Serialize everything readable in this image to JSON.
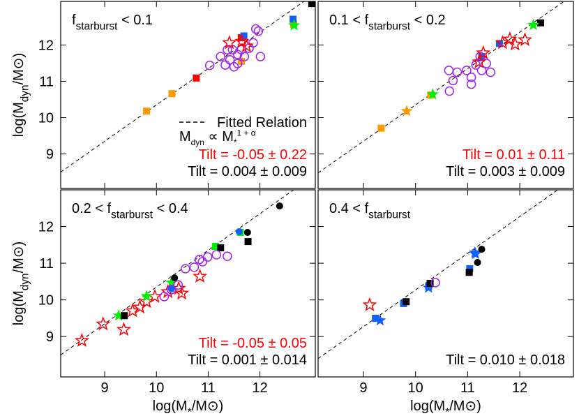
{
  "chart_data": [
    {
      "type": "scatter",
      "title": {
        "prefix": "f",
        "sub": "starburst",
        "suffix": " < 0.1"
      },
      "y_label": {
        "main": "log(M",
        "sub": "dyn",
        "rest": "/M⊙)"
      },
      "xlim": [
        8.15,
        13.07
      ],
      "ylim": [
        8.05,
        13.2
      ],
      "xticks": [
        9,
        10,
        11,
        12
      ],
      "yticks": [
        9,
        10,
        11,
        12
      ],
      "x_tick_labels": false,
      "y_tick_labels": true,
      "fit_line": {
        "x": [
          8.15,
          13.07
        ],
        "y": [
          8.5,
          13.42
        ]
      },
      "fit_label": "Fitted Relation",
      "formula": {
        "main": "M",
        "sub": "dyn",
        "rest": " ∝ M",
        "sub2": "*",
        "sup": "1 + α"
      },
      "annotations": [
        {
          "text": "Tilt = -0.05 ± 0.22",
          "color": "#ff0000"
        },
        {
          "text": "Tilt = 0.004 ± 0.009",
          "color": "#000000"
        }
      ],
      "series": [
        {
          "color": "#ff9900",
          "marker": "square",
          "x": [
            9.81,
            10.3,
            11.64,
            12.65
          ],
          "y": [
            10.18,
            10.66,
            11.55,
            12.57
          ]
        },
        {
          "color": "#ff0000",
          "marker": "square",
          "x": [
            10.77,
            11.64
          ],
          "y": [
            11.09,
            12.2
          ]
        },
        {
          "color": "#1060ff",
          "marker": "square",
          "x": [
            12.64,
            11.69
          ],
          "y": [
            12.71,
            12.25
          ]
        },
        {
          "color": "#00ee00",
          "marker": "star",
          "x": [
            12.66
          ],
          "y": [
            12.54
          ]
        },
        {
          "color": "#000000",
          "marker": "square",
          "x": [
            13.0
          ],
          "y": [
            13.14
          ]
        },
        {
          "color": "#a020f0",
          "marker": "open-circle",
          "x": [
            11.03,
            11.24,
            11.33,
            11.42,
            11.47,
            11.57,
            11.64,
            11.7,
            11.79,
            11.87,
            11.92,
            11.97,
            12.01,
            11.57,
            11.37,
            11.5
          ],
          "y": [
            11.44,
            11.68,
            11.45,
            11.59,
            11.87,
            11.74,
            11.87,
            11.68,
            11.91,
            12.06,
            12.44,
            12.38,
            11.68,
            11.49,
            11.87,
            11.4
          ]
        },
        {
          "color": "#ff0000",
          "marker": "open-star",
          "x": [
            11.41,
            11.65,
            11.74
          ],
          "y": [
            12.06,
            12.1,
            11.97
          ]
        }
      ]
    },
    {
      "type": "scatter",
      "title": {
        "prefix": "0.1 < f",
        "sub": "starburst",
        "suffix": " < 0.2"
      },
      "xlim": [
        8.13,
        13.03
      ],
      "ylim": [
        8.05,
        13.2
      ],
      "xticks": [
        9,
        10,
        11,
        12
      ],
      "yticks": [
        9,
        10,
        11,
        12
      ],
      "x_tick_labels": false,
      "y_tick_labels": false,
      "fit_line": {
        "x": [
          8.13,
          13.03
        ],
        "y": [
          8.48,
          13.38
        ]
      },
      "annotations": [
        {
          "text": "Tilt =  0.01 ± 0.11",
          "color": "#ff0000"
        },
        {
          "text": "Tilt = 0.003 ± 0.009",
          "color": "#000000"
        }
      ],
      "series": [
        {
          "color": "#ff9900",
          "marker": "square",
          "x": [
            9.34,
            10.29
          ],
          "y": [
            9.71,
            10.62
          ]
        },
        {
          "color": "#ff9900",
          "marker": "star",
          "x": [
            9.83
          ],
          "y": [
            10.18
          ]
        },
        {
          "color": "#000000",
          "marker": "square",
          "x": [
            12.4
          ],
          "y": [
            12.61
          ]
        },
        {
          "color": "#00ee00",
          "marker": "star",
          "x": [
            12.26,
            10.33
          ],
          "y": [
            12.55,
            10.64
          ]
        },
        {
          "color": "#1060ff",
          "marker": "square",
          "x": [
            11.61,
            11.27
          ],
          "y": [
            12.04,
            11.68
          ]
        },
        {
          "color": "#a020f0",
          "marker": "open-circle",
          "x": [
            10.64,
            10.8,
            10.98,
            11.07,
            11.16,
            11.27,
            11.36,
            11.44,
            10.72,
            10.65,
            11.24,
            11.07
          ],
          "y": [
            11.3,
            11.25,
            11.3,
            11.11,
            11.45,
            11.3,
            11.49,
            11.25,
            11.02,
            10.73,
            11.68,
            10.92
          ]
        },
        {
          "color": "#ff0000",
          "marker": "open-star",
          "x": [
            11.22,
            11.3,
            11.67,
            11.91,
            12.1,
            11.81
          ],
          "y": [
            11.53,
            11.78,
            12.06,
            12.02,
            12.14,
            12.16
          ]
        }
      ]
    },
    {
      "type": "scatter",
      "title": {
        "prefix": "0.2 < f",
        "sub": "starburst",
        "suffix": " < 0.4"
      },
      "y_label": {
        "main": "log(M",
        "sub": "dyn",
        "rest": "/M⊙)"
      },
      "x_label": {
        "main": "log(M",
        "sub": "*",
        "rest": "/M⊙)"
      },
      "xlim": [
        8.15,
        13.07
      ],
      "ylim": [
        7.9,
        13.0
      ],
      "xticks": [
        9,
        10,
        11,
        12
      ],
      "yticks": [
        9,
        10,
        11,
        12
      ],
      "x_tick_labels": true,
      "y_tick_labels": true,
      "fit_line": {
        "x": [
          8.15,
          13.07
        ],
        "y": [
          8.5,
          13.42
        ]
      },
      "annotations": [
        {
          "text": "Tilt = -0.05 ± 0.05",
          "color": "#ff0000"
        },
        {
          "text": "Tilt = 0.001 ± 0.014",
          "color": "#000000"
        }
      ],
      "series": [
        {
          "color": "#ff0000",
          "marker": "open-star",
          "x": [
            8.56,
            8.97,
            9.37,
            9.54,
            9.68,
            9.81,
            9.97,
            10.22,
            10.43,
            10.84,
            10.49
          ],
          "y": [
            8.89,
            9.34,
            9.19,
            9.7,
            9.8,
            9.95,
            10.09,
            10.22,
            10.31,
            10.64,
            10.18
          ]
        },
        {
          "color": "#00ee00",
          "marker": "star",
          "x": [
            9.27,
            9.81,
            10.29
          ],
          "y": [
            9.57,
            10.1,
            10.47
          ]
        },
        {
          "color": "#00ee00",
          "marker": "square",
          "x": [
            11.14,
            11.62
          ],
          "y": [
            11.46,
            11.84
          ]
        },
        {
          "color": "#000000",
          "marker": "circle",
          "x": [
            10.35,
            11.76,
            12.38
          ],
          "y": [
            10.6,
            11.84,
            12.56
          ]
        },
        {
          "color": "#000000",
          "marker": "square",
          "x": [
            9.38,
            11.24,
            11.77
          ],
          "y": [
            9.57,
            11.42,
            11.59
          ]
        },
        {
          "color": "#1060ff",
          "marker": "circle",
          "x": [
            11.6,
            10.29
          ],
          "y": [
            11.86,
            10.3
          ]
        },
        {
          "color": "#a020f0",
          "marker": "open-circle",
          "x": [
            10.15,
            10.29,
            10.42,
            10.56,
            10.73,
            10.89,
            10.99,
            11.16,
            11.37,
            10.83
          ],
          "y": [
            10.09,
            10.28,
            10.41,
            10.85,
            10.89,
            11.04,
            11.17,
            11.23,
            11.19,
            11.1
          ]
        }
      ]
    },
    {
      "type": "scatter",
      "title": {
        "prefix": "0.4 < f",
        "sub": "starburst"
      },
      "x_label": {
        "main": "log(M",
        "sub": "*",
        "rest": "/M⊙)"
      },
      "xlim": [
        8.13,
        13.03
      ],
      "ylim": [
        7.9,
        13.0
      ],
      "xticks": [
        9,
        10,
        11,
        12
      ],
      "yticks": [
        9,
        10,
        11,
        12
      ],
      "x_tick_labels": true,
      "y_tick_labels": false,
      "fit_line": {
        "x": [
          8.13,
          13.03
        ],
        "y": [
          8.4,
          13.3
        ]
      },
      "annotations": [
        {
          "text": "Tilt = 0.010 ± 0.018",
          "color": "#000000"
        }
      ],
      "series": [
        {
          "color": "#ff0000",
          "marker": "open-star",
          "x": [
            9.12
          ],
          "y": [
            9.86
          ]
        },
        {
          "color": "#1060ff",
          "marker": "square",
          "x": [
            9.23,
            9.77,
            10.25,
            11.04
          ],
          "y": [
            9.5,
            9.9,
            10.37,
            10.85
          ]
        },
        {
          "color": "#1060ff",
          "marker": "star",
          "x": [
            9.32,
            11.15,
            10.25,
            11.14
          ],
          "y": [
            9.44,
            11.25,
            10.33,
            11.29
          ]
        },
        {
          "color": "#000000",
          "marker": "square",
          "x": [
            9.82,
            11.03,
            10.28
          ],
          "y": [
            9.95,
            10.75,
            10.45
          ]
        },
        {
          "color": "#a020f0",
          "marker": "open-circle",
          "x": [
            10.38
          ],
          "y": [
            10.47
          ]
        },
        {
          "color": "#000000",
          "marker": "circle",
          "x": [
            11.19,
            11.27
          ],
          "y": [
            11.02,
            11.38
          ]
        }
      ]
    }
  ]
}
